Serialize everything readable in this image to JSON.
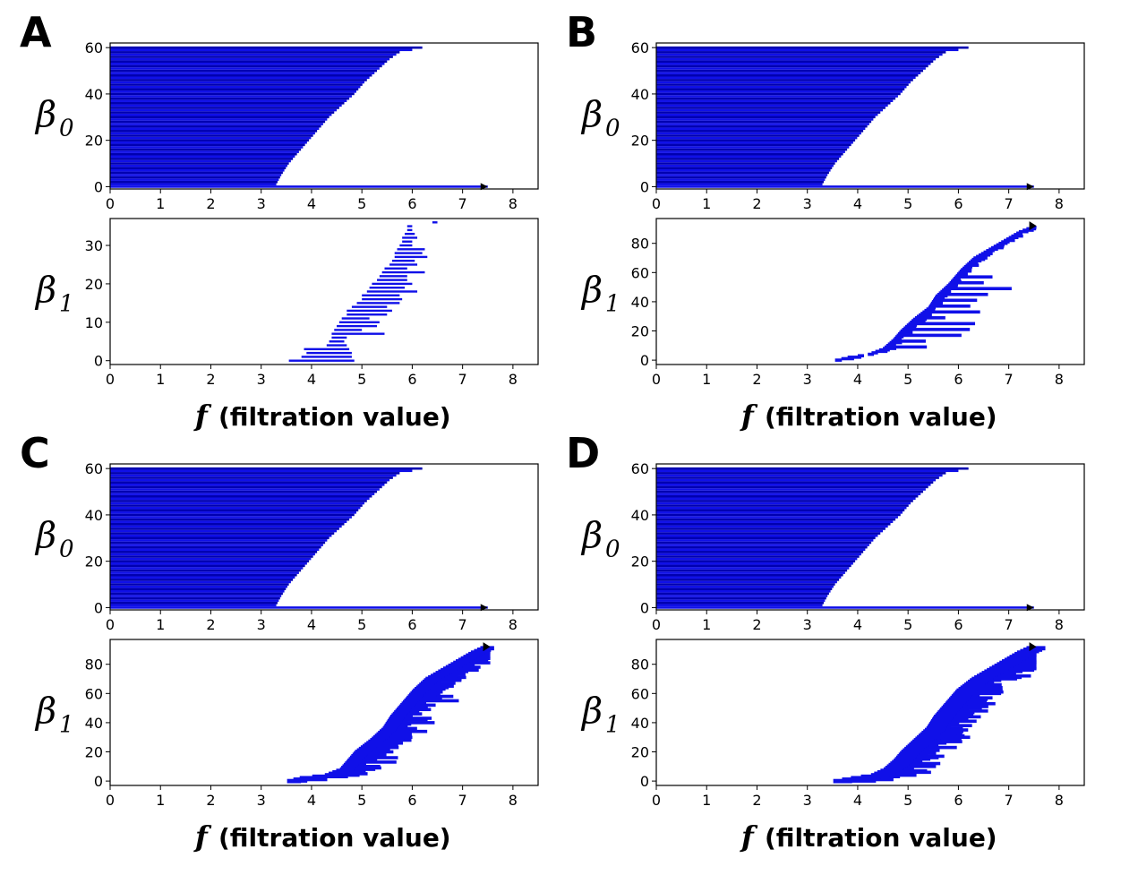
{
  "colors": {
    "bar": "#1010e8",
    "bar_edge": "#0000b0",
    "infinite_arrow": "#000000"
  },
  "chart_data": [
    {
      "panel": "A",
      "type": "bar",
      "plots": [
        {
          "id": "A-beta0",
          "ylabel": "β",
          "ylabel_sub": "0",
          "xlim": [
            0,
            8.5
          ],
          "ylim": [
            -1,
            62
          ],
          "xticks": [
            "0",
            "1",
            "2",
            "3",
            "4",
            "5",
            "6",
            "7",
            "8"
          ],
          "yticks": [
            0,
            20,
            40,
            60
          ],
          "profile": [
            [
              0,
              3.3
            ],
            [
              1,
              3.3
            ],
            [
              5,
              3.4
            ],
            [
              10,
              3.55
            ],
            [
              15,
              3.75
            ],
            [
              20,
              3.95
            ],
            [
              25,
              4.15
            ],
            [
              30,
              4.35
            ],
            [
              35,
              4.6
            ],
            [
              40,
              4.85
            ],
            [
              45,
              5.05
            ],
            [
              50,
              5.3
            ],
            [
              55,
              5.55
            ],
            [
              58,
              5.75
            ],
            [
              59,
              6.0
            ],
            [
              60,
              6.2
            ],
            [
              61,
              6.5
            ]
          ],
          "bar_count": 60,
          "infinite_bar": {
            "birth": 0,
            "end": 7.5
          }
        },
        {
          "id": "A-beta1",
          "ylabel": "β",
          "ylabel_sub": "1",
          "xlabel_f": "f",
          "xlabel_text": "(filtration value)",
          "xlim": [
            0,
            8.5
          ],
          "ylim": [
            -1,
            37
          ],
          "xticks": [
            "0",
            "1",
            "2",
            "3",
            "4",
            "5",
            "6",
            "7",
            "8"
          ],
          "yticks": [
            0,
            10,
            20,
            30
          ],
          "bars": [
            [
              3.55,
              4.85
            ],
            [
              3.8,
              4.8
            ],
            [
              3.9,
              4.8
            ],
            [
              3.85,
              4.75
            ],
            [
              4.3,
              4.7
            ],
            [
              4.35,
              4.65
            ],
            [
              4.4,
              4.7
            ],
            [
              4.4,
              5.45
            ],
            [
              4.45,
              5.0
            ],
            [
              4.5,
              5.3
            ],
            [
              4.55,
              5.35
            ],
            [
              4.6,
              5.15
            ],
            [
              4.7,
              5.5
            ],
            [
              4.7,
              5.6
            ],
            [
              4.8,
              5.5
            ],
            [
              4.9,
              5.75
            ],
            [
              5.0,
              5.8
            ],
            [
              5.0,
              5.75
            ],
            [
              5.1,
              6.1
            ],
            [
              5.15,
              5.85
            ],
            [
              5.2,
              6.0
            ],
            [
              5.3,
              5.9
            ],
            [
              5.35,
              5.9
            ],
            [
              5.4,
              6.25
            ],
            [
              5.45,
              5.9
            ],
            [
              5.55,
              6.1
            ],
            [
              5.6,
              6.05
            ],
            [
              5.65,
              6.3
            ],
            [
              5.65,
              6.2
            ],
            [
              5.7,
              6.25
            ],
            [
              5.75,
              6.0
            ],
            [
              5.8,
              6.0
            ],
            [
              5.8,
              6.1
            ],
            [
              5.85,
              6.05
            ],
            [
              5.9,
              6.0
            ],
            [
              5.9,
              6.0
            ],
            [
              6.4,
              6.5
            ]
          ]
        }
      ]
    },
    {
      "panel": "B",
      "type": "bar",
      "plots": [
        {
          "id": "B-beta0",
          "ylabel": "β",
          "ylabel_sub": "0",
          "xlim": [
            0,
            8.5
          ],
          "ylim": [
            -1,
            62
          ],
          "xticks": [
            "0",
            "1",
            "2",
            "3",
            "4",
            "5",
            "6",
            "7",
            "8"
          ],
          "yticks": [
            0,
            20,
            40,
            60
          ],
          "profile": [
            [
              0,
              3.3
            ],
            [
              1,
              3.3
            ],
            [
              5,
              3.4
            ],
            [
              10,
              3.55
            ],
            [
              15,
              3.75
            ],
            [
              20,
              3.95
            ],
            [
              25,
              4.15
            ],
            [
              30,
              4.35
            ],
            [
              35,
              4.6
            ],
            [
              40,
              4.85
            ],
            [
              45,
              5.05
            ],
            [
              50,
              5.3
            ],
            [
              55,
              5.55
            ],
            [
              58,
              5.75
            ],
            [
              59,
              6.0
            ],
            [
              60,
              6.2
            ],
            [
              61,
              6.5
            ]
          ],
          "bar_count": 60,
          "infinite_bar": {
            "birth": 0,
            "end": 7.5
          }
        },
        {
          "id": "B-beta1",
          "ylabel": "β",
          "ylabel_sub": "1",
          "xlabel_f": "f",
          "xlabel_text": "(filtration value)",
          "xlim": [
            0,
            8.5
          ],
          "ylim": [
            -3,
            97
          ],
          "xticks": [
            "0",
            "1",
            "2",
            "3",
            "4",
            "5",
            "6",
            "7",
            "8"
          ],
          "yticks": [
            0,
            20,
            40,
            60,
            80
          ],
          "density": {
            "count": 92,
            "birth_profile": [
              [
                0,
                3.55
              ],
              [
                2,
                3.8
              ],
              [
                4,
                4.2
              ],
              [
                8,
                4.5
              ],
              [
                14,
                4.7
              ],
              [
                20,
                4.85
              ],
              [
                28,
                5.1
              ],
              [
                36,
                5.4
              ],
              [
                44,
                5.55
              ],
              [
                52,
                5.8
              ],
              [
                62,
                6.05
              ],
              [
                70,
                6.3
              ],
              [
                80,
                6.8
              ],
              [
                88,
                7.2
              ],
              [
                92,
                7.5
              ]
            ],
            "bulk_width": 0.2,
            "spread_width": 1.4,
            "spread_every": 4
          },
          "infinite_bar": {
            "row": 92,
            "birth": 7.4,
            "end": 7.55
          }
        }
      ]
    },
    {
      "panel": "C",
      "type": "bar",
      "plots": [
        {
          "id": "C-beta0",
          "ylabel": "β",
          "ylabel_sub": "0",
          "xlim": [
            0,
            8.5
          ],
          "ylim": [
            -1,
            62
          ],
          "xticks": [
            "0",
            "1",
            "2",
            "3",
            "4",
            "5",
            "6",
            "7",
            "8"
          ],
          "yticks": [
            0,
            20,
            40,
            60
          ],
          "profile": [
            [
              0,
              3.3
            ],
            [
              1,
              3.3
            ],
            [
              5,
              3.4
            ],
            [
              10,
              3.55
            ],
            [
              15,
              3.75
            ],
            [
              20,
              3.95
            ],
            [
              25,
              4.15
            ],
            [
              30,
              4.35
            ],
            [
              35,
              4.6
            ],
            [
              40,
              4.85
            ],
            [
              45,
              5.05
            ],
            [
              50,
              5.3
            ],
            [
              55,
              5.55
            ],
            [
              58,
              5.75
            ],
            [
              59,
              6.0
            ],
            [
              60,
              6.2
            ],
            [
              61,
              6.5
            ]
          ],
          "bar_count": 60,
          "infinite_bar": {
            "birth": 0,
            "end": 7.5
          }
        },
        {
          "id": "C-beta1",
          "ylabel": "β",
          "ylabel_sub": "1",
          "xlabel_f": "f",
          "xlabel_text": "(filtration value)",
          "xlim": [
            0,
            8.5
          ],
          "ylim": [
            -3,
            97
          ],
          "xticks": [
            "0",
            "1",
            "2",
            "3",
            "4",
            "5",
            "6",
            "7",
            "8"
          ],
          "yticks": [
            0,
            20,
            40,
            60,
            80
          ],
          "density": {
            "count": 92,
            "birth_profile": [
              [
                0,
                3.55
              ],
              [
                2,
                3.8
              ],
              [
                4,
                4.3
              ],
              [
                8,
                4.6
              ],
              [
                14,
                4.75
              ],
              [
                20,
                4.9
              ],
              [
                28,
                5.2
              ],
              [
                36,
                5.45
              ],
              [
                44,
                5.6
              ],
              [
                52,
                5.8
              ],
              [
                62,
                6.05
              ],
              [
                70,
                6.3
              ],
              [
                80,
                6.8
              ],
              [
                88,
                7.2
              ],
              [
                92,
                7.45
              ]
            ],
            "bulk_width": 0.55,
            "spread_width": 1.1,
            "spread_every": 3
          },
          "infinite_bar": {
            "row": 92,
            "birth": 7.45,
            "end": 7.55
          }
        }
      ]
    },
    {
      "panel": "D",
      "type": "bar",
      "plots": [
        {
          "id": "D-beta0",
          "ylabel": "β",
          "ylabel_sub": "0",
          "xlim": [
            0,
            8.5
          ],
          "ylim": [
            -1,
            62
          ],
          "xticks": [
            "0",
            "1",
            "2",
            "3",
            "4",
            "5",
            "6",
            "7",
            "8"
          ],
          "yticks": [
            0,
            20,
            40,
            60
          ],
          "profile": [
            [
              0,
              3.3
            ],
            [
              1,
              3.3
            ],
            [
              5,
              3.4
            ],
            [
              10,
              3.55
            ],
            [
              15,
              3.75
            ],
            [
              20,
              3.95
            ],
            [
              25,
              4.15
            ],
            [
              30,
              4.35
            ],
            [
              35,
              4.6
            ],
            [
              40,
              4.85
            ],
            [
              45,
              5.05
            ],
            [
              50,
              5.3
            ],
            [
              55,
              5.55
            ],
            [
              58,
              5.75
            ],
            [
              59,
              6.0
            ],
            [
              60,
              6.2
            ],
            [
              61,
              6.5
            ]
          ],
          "bar_count": 60,
          "infinite_bar": {
            "birth": 0,
            "end": 7.5
          }
        },
        {
          "id": "D-beta1",
          "ylabel": "β",
          "ylabel_sub": "1",
          "xlabel_f": "f",
          "xlabel_text": "(filtration value)",
          "xlim": [
            0,
            8.5
          ],
          "ylim": [
            -3,
            97
          ],
          "xticks": [
            "0",
            "1",
            "2",
            "3",
            "4",
            "5",
            "6",
            "7",
            "8"
          ],
          "yticks": [
            0,
            20,
            40,
            60,
            80
          ],
          "density": {
            "count": 92,
            "birth_profile": [
              [
                0,
                3.55
              ],
              [
                2,
                3.9
              ],
              [
                4,
                4.3
              ],
              [
                8,
                4.55
              ],
              [
                14,
                4.75
              ],
              [
                20,
                4.9
              ],
              [
                28,
                5.15
              ],
              [
                36,
                5.4
              ],
              [
                44,
                5.55
              ],
              [
                52,
                5.75
              ],
              [
                62,
                6.0
              ],
              [
                70,
                6.3
              ],
              [
                80,
                6.8
              ],
              [
                88,
                7.2
              ],
              [
                92,
                7.45
              ]
            ],
            "bulk_width": 0.75,
            "spread_width": 1.0,
            "spread_every": 3
          },
          "infinite_bar": {
            "row": 92,
            "birth": 7.45,
            "end": 7.55
          }
        }
      ]
    }
  ]
}
